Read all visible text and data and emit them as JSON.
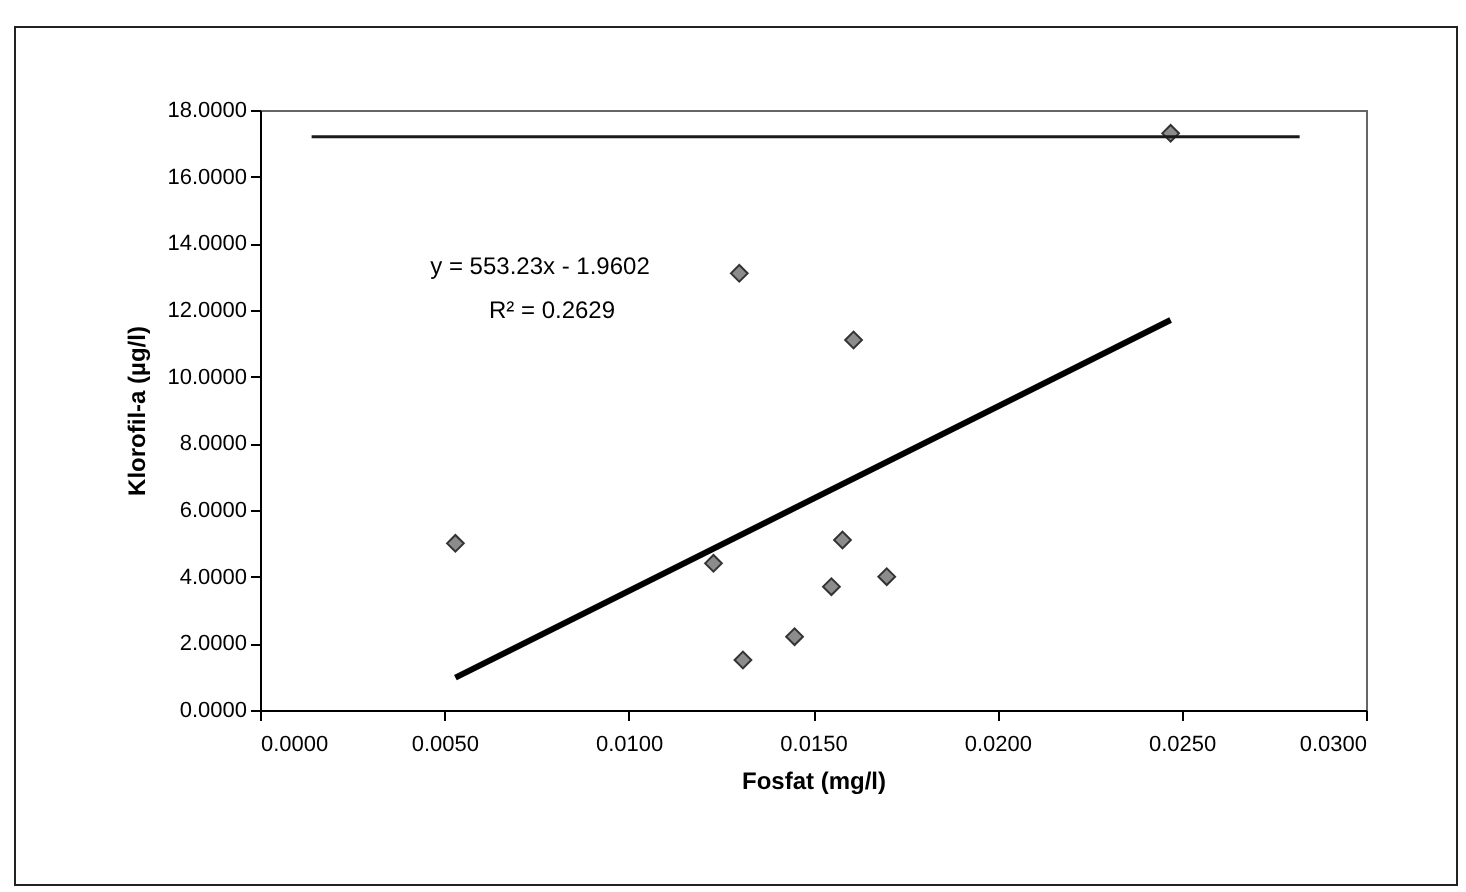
{
  "chart_data": {
    "type": "scatter",
    "xlabel": "Fosfat (mg/l)",
    "ylabel": "Klorofil-a (µg/l)",
    "x": [
      0.0053,
      0.013,
      0.0161,
      0.0123,
      0.0158,
      0.0155,
      0.017,
      0.0145,
      0.0131,
      0.0247
    ],
    "series": [
      {
        "type": "scatter",
        "color": "#8c8c8c",
        "values": [
          5.0,
          13.1,
          11.1,
          4.4,
          5.1,
          3.7,
          4.0,
          2.2,
          1.5,
          17.3
        ]
      },
      {
        "type": "line",
        "marker": "none",
        "color": "#000000",
        "x": [
          0.0053,
          0.0247
        ],
        "values": [
          0.97,
          11.7
        ]
      },
      {
        "type": "line",
        "marker": "none",
        "color": "#1a1a1a",
        "x": [
          0.0014,
          0.0282
        ],
        "values": [
          17.2,
          17.2
        ]
      }
    ],
    "marker": "diamond",
    "grid": false,
    "xlim": [
      0,
      0.03
    ],
    "xticks": [
      {
        "value": 0,
        "label": "0.0000"
      },
      {
        "value": 0.005,
        "label": "0.0050"
      },
      {
        "value": 0.01,
        "label": "0.0100"
      },
      {
        "value": 0.015,
        "label": "0.0150"
      },
      {
        "value": 0.02,
        "label": "0.0200"
      },
      {
        "value": 0.025,
        "label": "0.0250"
      },
      {
        "value": 0.03,
        "label": "0.0300"
      }
    ],
    "ylim": [
      0,
      18
    ],
    "yticks": [
      {
        "value": 0,
        "label": "0.0000"
      },
      {
        "value": 2,
        "label": "2.0000"
      },
      {
        "value": 4,
        "label": "4.0000"
      },
      {
        "value": 6,
        "label": "6.0000"
      },
      {
        "value": 8,
        "label": "8.0000"
      },
      {
        "value": 10,
        "label": "10.0000"
      },
      {
        "value": 12,
        "label": "12.0000"
      },
      {
        "value": 14,
        "label": "14.0000"
      },
      {
        "value": 16,
        "label": "16.0000"
      },
      {
        "value": 18,
        "label": "18.0000"
      }
    ],
    "annotations": [
      "y = 553.23x - 1.9602",
      "R² = 0.2629"
    ]
  }
}
